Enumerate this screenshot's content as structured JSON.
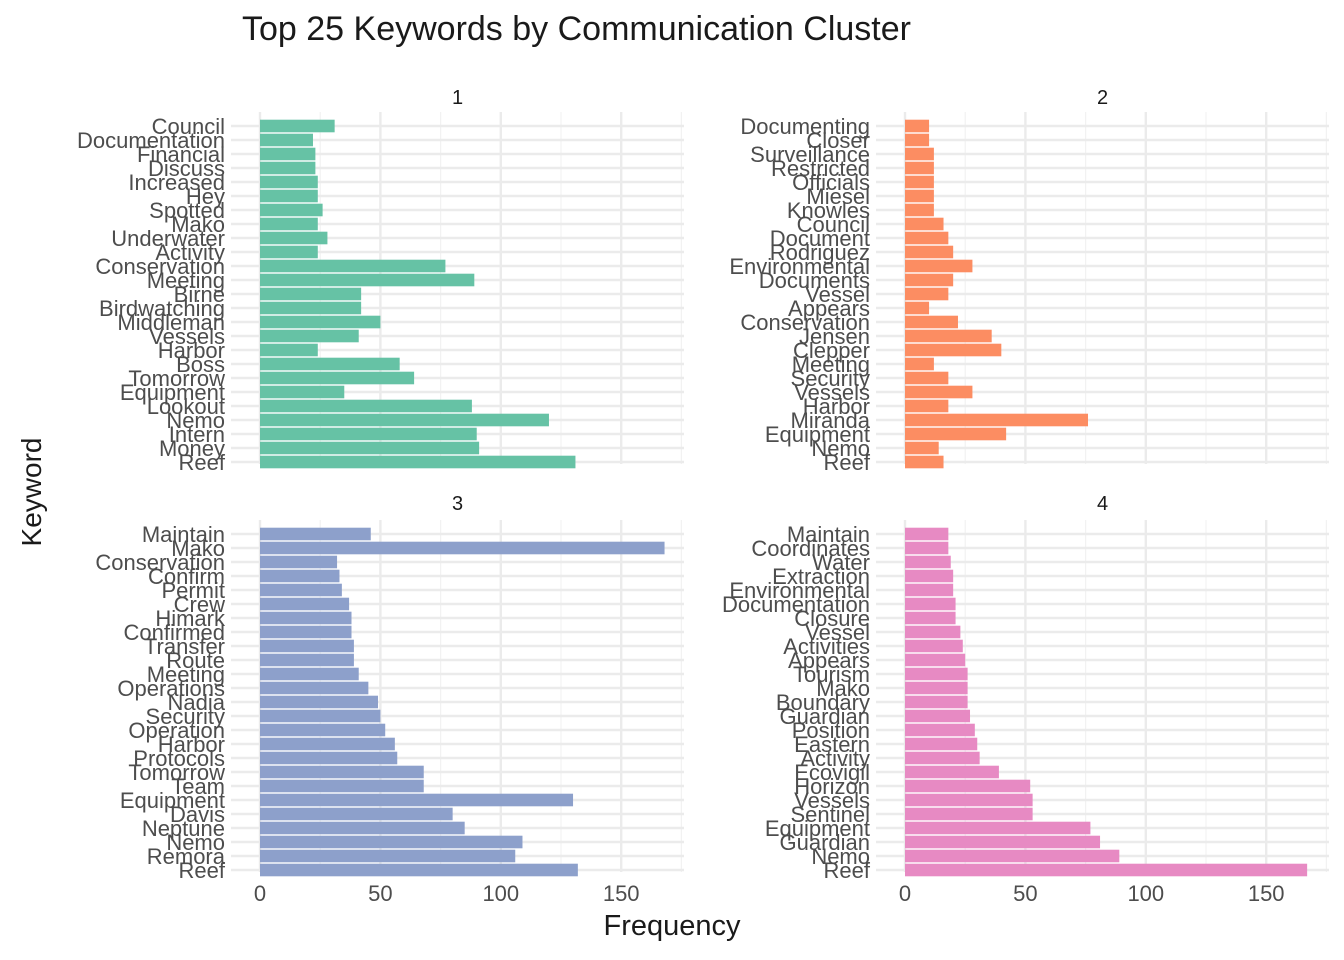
{
  "chart_data": {
    "type": "bar",
    "title": "Top 25 Keywords by Communication Cluster",
    "xlabel": "Frequency",
    "ylabel": "Keyword",
    "xlim": [
      0,
      175
    ],
    "x_ticks": [
      0,
      50,
      100,
      150
    ],
    "grid": true,
    "legend": "none",
    "panels": [
      {
        "name": "1",
        "color": "#66c2a5",
        "categories": [
          "Council",
          "Documentation",
          "Financial",
          "Discuss",
          "Increased",
          "Hey",
          "Spotted",
          "Mako",
          "Underwater",
          "Activity",
          "Conservation",
          "Meeting",
          "Birne",
          "Birdwatching",
          "Middleman",
          "Vessels",
          "Harbor",
          "Boss",
          "Tomorrow",
          "Equipment",
          "Lookout",
          "Nemo",
          "Intern",
          "Money",
          "Reef"
        ],
        "values": [
          31,
          22,
          23,
          23,
          24,
          24,
          26,
          24,
          28,
          24,
          77,
          89,
          42,
          42,
          50,
          41,
          24,
          58,
          64,
          35,
          88,
          120,
          90,
          91,
          131
        ]
      },
      {
        "name": "2",
        "color": "#fc8d62",
        "categories": [
          "Documenting",
          "Closer",
          "Surveillance",
          "Restricted",
          "Officials",
          "Miesel",
          "Knowles",
          "Council",
          "Document",
          "Rodriguez",
          "Environmental",
          "Documents",
          "Vessel",
          "Appears",
          "Conservation",
          "Jensen",
          "Clepper",
          "Meeting",
          "Security",
          "Vessels",
          "Harbor",
          "Miranda",
          "Equipment",
          "Nemo",
          "Reef"
        ],
        "values": [
          10,
          10,
          12,
          12,
          12,
          12,
          12,
          16,
          18,
          20,
          28,
          20,
          18,
          10,
          22,
          36,
          40,
          12,
          18,
          28,
          18,
          76,
          42,
          14,
          16
        ]
      },
      {
        "name": "3",
        "color": "#8da0cb",
        "categories": [
          "Maintain",
          "Mako",
          "Conservation",
          "Confirm",
          "Permit",
          "Crew",
          "Himark",
          "Confirmed",
          "Transfer",
          "Route",
          "Meeting",
          "Operations",
          "Nadia",
          "Security",
          "Operation",
          "Harbor",
          "Protocols",
          "Tomorrow",
          "Team",
          "Equipment",
          "Davis",
          "Neptune",
          "Nemo",
          "Remora",
          "Reef"
        ],
        "values": [
          46,
          168,
          32,
          33,
          34,
          37,
          38,
          38,
          39,
          39,
          41,
          45,
          49,
          50,
          52,
          56,
          57,
          68,
          68,
          130,
          80,
          85,
          109,
          106,
          132
        ]
      },
      {
        "name": "4",
        "color": "#e78ac3",
        "categories": [
          "Maintain",
          "Coordinates",
          "Water",
          "Extraction",
          "Environmental",
          "Documentation",
          "Closure",
          "Vessel",
          "Activities",
          "Appears",
          "Tourism",
          "Mako",
          "Boundary",
          "Guardian",
          "Position",
          "Eastern",
          "Activity",
          "Ecovigil",
          "Horizon",
          "Vessels",
          "Sentinel",
          "Equipment",
          "Guardian",
          "Nemo",
          "Reef"
        ],
        "values": [
          18,
          18,
          19,
          20,
          20,
          21,
          21,
          23,
          24,
          25,
          26,
          26,
          26,
          27,
          29,
          30,
          31,
          39,
          52,
          53,
          53,
          77,
          81,
          89,
          167
        ]
      }
    ]
  }
}
